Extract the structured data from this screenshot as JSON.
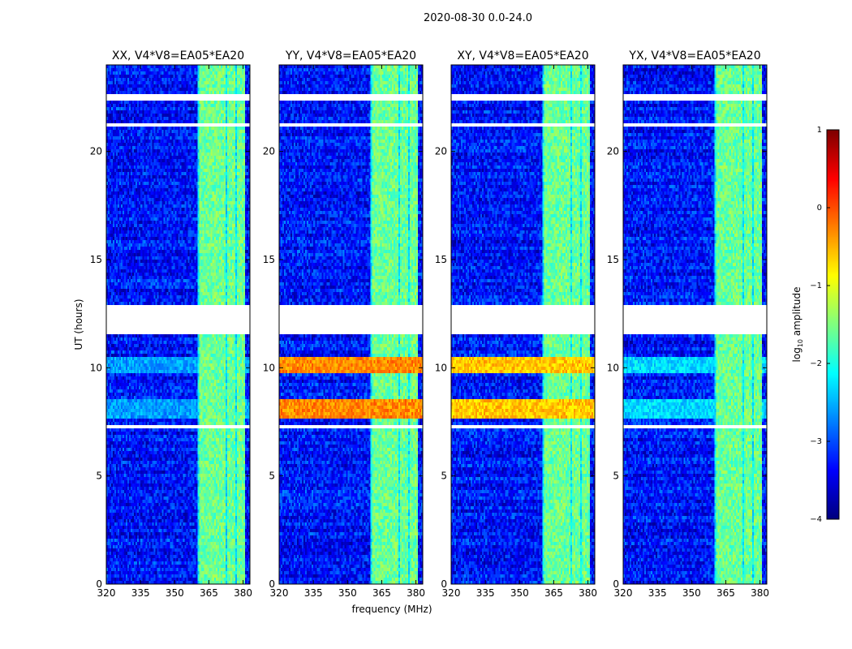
{
  "suptitle": "2020-08-30 0.0-24.0",
  "chart_data": {
    "type": "heatmap",
    "xlabel": "frequency (MHz)",
    "ylabel": "UT (hours)",
    "xlim": [
      320,
      383
    ],
    "ylim": [
      0,
      24
    ],
    "xticks": [
      320,
      335,
      350,
      365,
      380
    ],
    "yticks": [
      0,
      5,
      10,
      15,
      20
    ],
    "colorbar": {
      "label_prefix": "log",
      "label_sub": "10",
      "label_suffix": " amplitude",
      "range": [
        -4,
        1
      ],
      "ticks": [
        -4,
        -3,
        -2,
        -1,
        0,
        1
      ],
      "tick_labels": [
        "−4",
        "−3",
        "−2",
        "−1",
        "0",
        "1"
      ],
      "colormap": "jet"
    },
    "panels": [
      {
        "title": "XX, V4*V8=EA05*EA20",
        "rfi_level": -2.6
      },
      {
        "title": "YY, V4*V8=EA05*EA20",
        "rfi_level": -0.3
      },
      {
        "title": "XY, V4*V8=EA05*EA20",
        "rfi_level": -0.6
      },
      {
        "title": "YX, V4*V8=EA05*EA20",
        "rfi_level": -2.3
      }
    ],
    "noise_level": -3.3,
    "band_level": -1.6,
    "band_freq_range_mhz": [
      360,
      381
    ],
    "flagged_ut_hours": [
      [
        11.6,
        12.9
      ],
      [
        22.3,
        22.7
      ],
      [
        7.2,
        7.4
      ],
      [
        21.1,
        21.3
      ]
    ],
    "rfi_ut_hours": [
      [
        7.6,
        8.6
      ],
      [
        9.7,
        10.5
      ]
    ],
    "colors": {
      "background": "#ffffff",
      "flag": "#ffffff",
      "axis": "#000000"
    }
  }
}
